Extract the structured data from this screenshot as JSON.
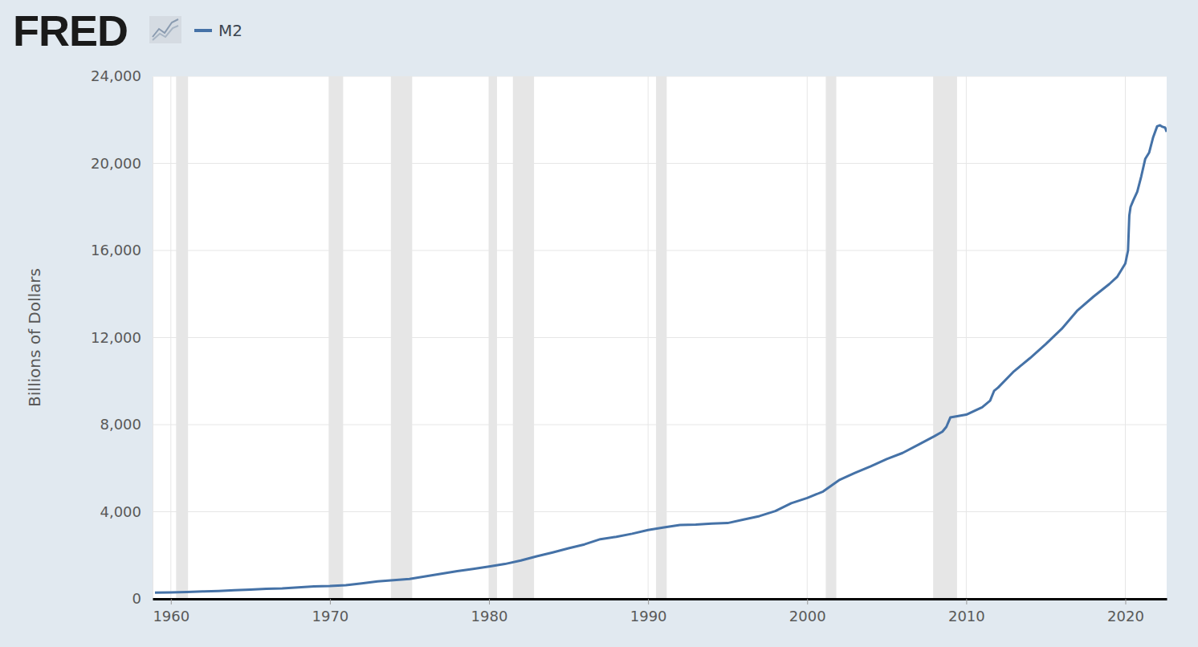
{
  "chart_data": {
    "type": "line",
    "brand": "FRED",
    "y_label": "Billions of Dollars",
    "legend": "top",
    "grid": true,
    "xlim": [
      1958.85,
      2022.6
    ],
    "xticks": [
      1960,
      1970,
      1980,
      1990,
      2000,
      2010,
      2020
    ],
    "ylim": [
      0,
      24000
    ],
    "yticks": [
      0,
      {
        "value": 4000,
        "label": "4,000"
      },
      {
        "value": 8000,
        "label": "8,000"
      },
      {
        "value": 12000,
        "label": "12,000"
      },
      {
        "value": 16000,
        "label": "16,000"
      },
      {
        "value": 20000,
        "label": "20,000"
      },
      {
        "value": 24000,
        "label": "24,000"
      }
    ],
    "recessions": [
      [
        1960.33,
        1961.08
      ],
      [
        1969.92,
        1970.83
      ],
      [
        1973.83,
        1975.17
      ],
      [
        1980.0,
        1980.5
      ],
      [
        1981.5,
        1982.83
      ],
      [
        1990.5,
        1991.17
      ],
      [
        2001.17,
        2001.83
      ],
      [
        2007.92,
        2009.42
      ]
    ],
    "x": [
      1959,
      1960,
      1961,
      1962,
      1963,
      1964,
      1965,
      1966,
      1967,
      1968,
      1969,
      1970,
      1971,
      1972,
      1973,
      1974,
      1975,
      1976,
      1977,
      1978,
      1979,
      1980,
      1981,
      1982,
      1983,
      1984,
      1985,
      1986,
      1987,
      1988,
      1989,
      1990,
      1991,
      1992,
      1993,
      1994,
      1995,
      1996,
      1997,
      1998,
      1999,
      2000,
      2001,
      2002,
      2003,
      2004,
      2005,
      2006,
      2007,
      2008,
      2008.5,
      2008.75,
      2009,
      2010,
      2011,
      2011.5,
      2011.75,
      2012,
      2013,
      2014,
      2015,
      2016,
      2017,
      2018,
      2019,
      2019.5,
      2020,
      2020.17,
      2020.25,
      2020.33,
      2020.5,
      2020.75,
      2021,
      2021.25,
      2021.5,
      2021.75,
      2022,
      2022.17,
      2022.33,
      2022.5,
      2022.6
    ],
    "series": [
      {
        "name": "M2",
        "color": "#4572a7",
        "values": [
          286,
          299,
          313,
          338,
          364,
          393,
          424,
          459,
          481,
          525,
          567,
          588,
          628,
          710,
          802,
          856,
          910,
          1030,
          1152,
          1273,
          1371,
          1480,
          1600,
          1760,
          1955,
          2130,
          2320,
          2500,
          2740,
          2850,
          2990,
          3160,
          3280,
          3390,
          3410,
          3460,
          3480,
          3640,
          3800,
          4030,
          4390,
          4630,
          4930,
          5450,
          5780,
          6090,
          6420,
          6700,
          7080,
          7470,
          7680,
          7900,
          8330,
          8460,
          8800,
          9100,
          9550,
          9700,
          10450,
          11050,
          11700,
          12400,
          13250,
          13880,
          14460,
          14800,
          15400,
          16000,
          17600,
          18000,
          18300,
          18700,
          19400,
          20200,
          20500,
          21200,
          21700,
          21750,
          21680,
          21640,
          21450
        ]
      }
    ]
  }
}
